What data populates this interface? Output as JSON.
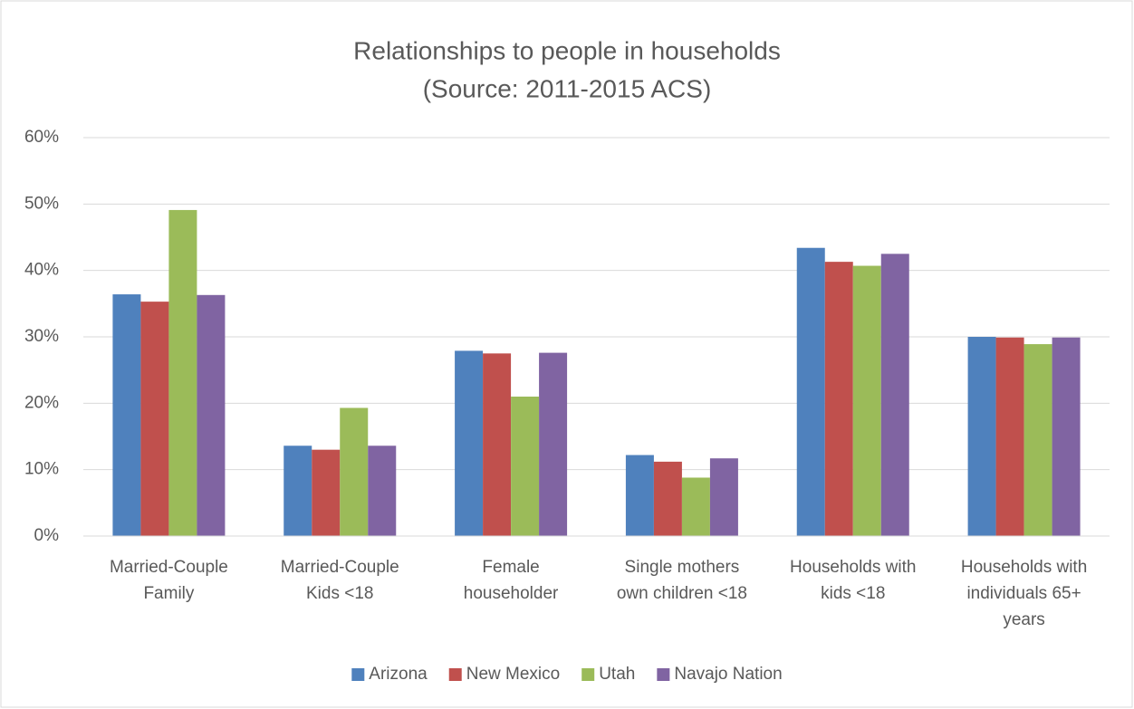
{
  "chart_data": {
    "type": "bar",
    "title": "Relationships to people in households",
    "subtitle": "(Source: 2011-2015 ACS)",
    "categories": [
      [
        "Married-Couple",
        "Family"
      ],
      [
        "Married-Couple",
        "Kids <18"
      ],
      [
        "Female",
        "householder"
      ],
      [
        "Single mothers",
        "own children <18"
      ],
      [
        "Households with",
        "kids <18"
      ],
      [
        "Households with",
        "individuals 65+",
        "years"
      ]
    ],
    "series": [
      {
        "name": "Arizona",
        "color": "#4f81bd",
        "values": [
          36.4,
          13.6,
          27.9,
          12.2,
          43.4,
          30.0
        ]
      },
      {
        "name": "New Mexico",
        "color": "#c0504d",
        "values": [
          35.3,
          13.0,
          27.5,
          11.2,
          41.3,
          29.9
        ]
      },
      {
        "name": "Utah",
        "color": "#9bbb59",
        "values": [
          49.1,
          19.3,
          21.0,
          8.8,
          40.7,
          28.9
        ]
      },
      {
        "name": "Navajo Nation",
        "color": "#8064a2",
        "values": [
          36.3,
          13.6,
          27.6,
          11.7,
          42.5,
          29.9
        ]
      }
    ],
    "ylim": [
      0,
      60
    ],
    "yticks": [
      {
        "value": 0,
        "label": "0%"
      },
      {
        "value": 10,
        "label": "10%"
      },
      {
        "value": 20,
        "label": "20%"
      },
      {
        "value": 30,
        "label": "30%"
      },
      {
        "value": 40,
        "label": "40%"
      },
      {
        "value": 50,
        "label": "50%"
      },
      {
        "value": 60,
        "label": "60%"
      }
    ],
    "grid": true,
    "legend": "bottom"
  }
}
